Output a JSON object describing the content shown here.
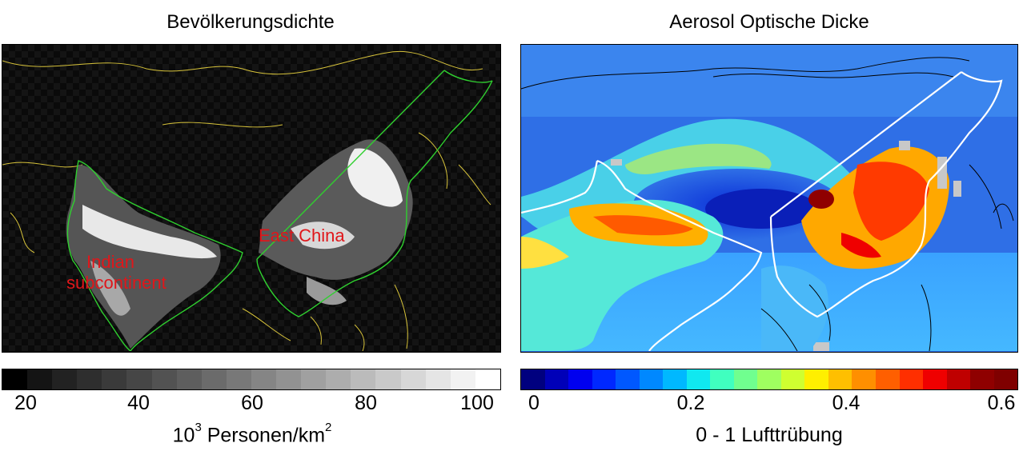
{
  "left_panel": {
    "title": "Bevölkerungsdichte",
    "labels": {
      "india": [
        "Indian",
        "subcontinent"
      ],
      "china": "East China"
    },
    "colorbar": {
      "ticks": [
        "20",
        "40",
        "60",
        "80",
        "100"
      ],
      "caption_base": "10",
      "caption_exp": "3",
      "caption_text": " Personen/km",
      "caption_exp2": "2",
      "colors": [
        "#000000",
        "#141414",
        "#222222",
        "#2e2e2e",
        "#3a3a3a",
        "#464646",
        "#525252",
        "#5e5e5e",
        "#6b6b6b",
        "#787878",
        "#858585",
        "#929292",
        "#a0a0a0",
        "#adadad",
        "#bbbbbb",
        "#c9c9c9",
        "#d7d7d7",
        "#e5e5e5",
        "#f2f2f2",
        "#ffffff"
      ]
    },
    "border_color": "#2fd02f",
    "coast_color": "#d6c23a"
  },
  "right_panel": {
    "title": "Aerosol Optische Dicke",
    "colorbar": {
      "ticks": [
        "0",
        "0.2",
        "0.4",
        "0.6"
      ],
      "caption": "0 - 1 Lufttrübung",
      "colors": [
        "#00007f",
        "#0000b8",
        "#0000ef",
        "#0028ff",
        "#0058ff",
        "#0088ff",
        "#00b8ff",
        "#10e8f0",
        "#40ffbf",
        "#70ff8f",
        "#9fff60",
        "#cfff30",
        "#ffef00",
        "#ffbf00",
        "#ff8f00",
        "#ff5f00",
        "#ff2f00",
        "#ef0000",
        "#bf0000",
        "#8f0000",
        "#7f0000"
      ]
    },
    "border_color": "#ffffff"
  }
}
